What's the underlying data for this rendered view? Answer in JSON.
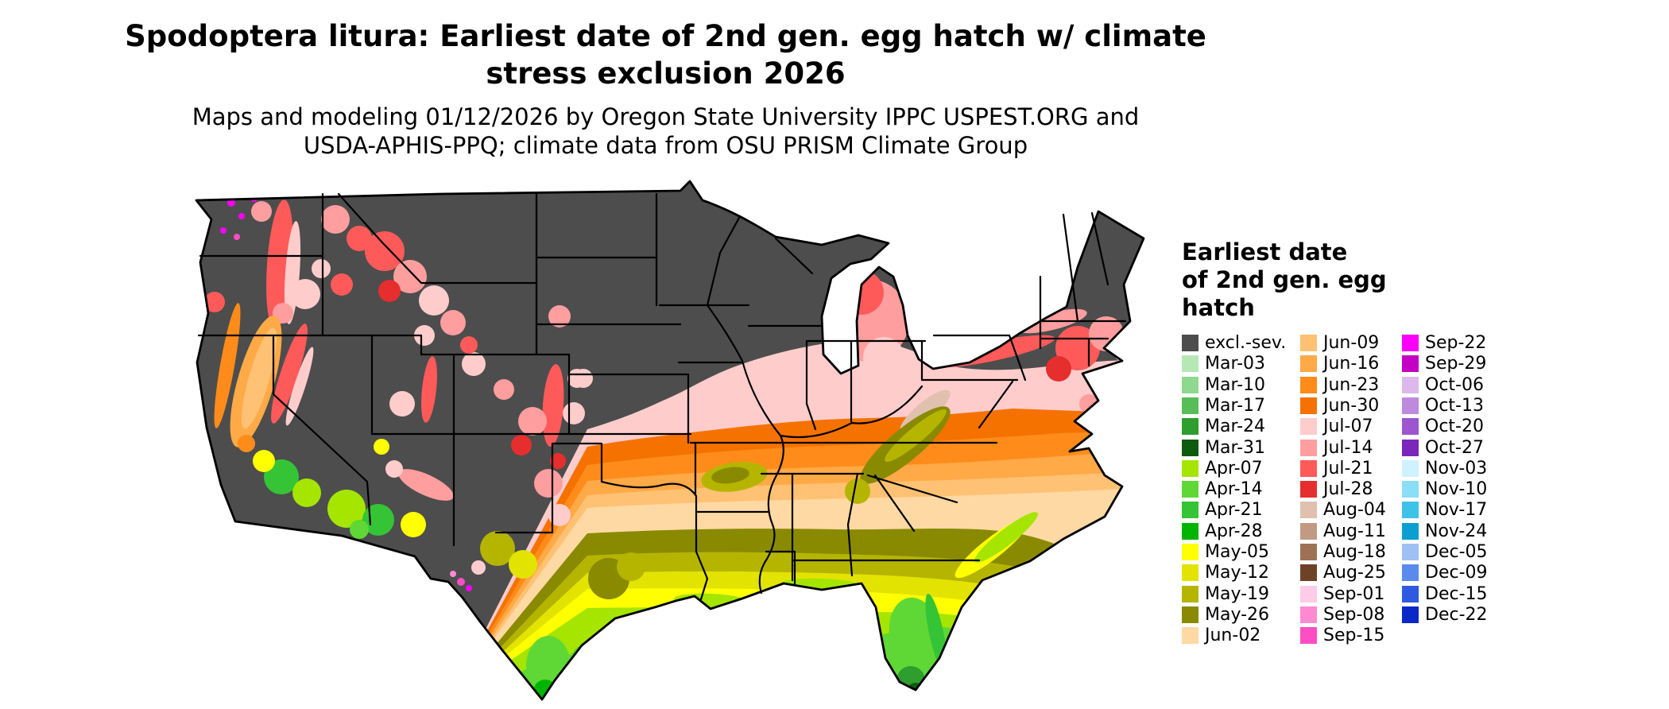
{
  "header": {
    "title_line1": "Spodoptera litura: Earliest date of 2nd gen. egg hatch w/ climate",
    "title_line2": "stress exclusion 2026",
    "subtitle_line1": "Maps and modeling 01/12/2026 by Oregon State University IPPC USPEST.ORG and",
    "subtitle_line2": "USDA-APHIS-PPQ; climate data from OSU PRISM Climate Group"
  },
  "legend": {
    "title": "Earliest date of 2nd gen. egg hatch",
    "title_lines": [
      "Earliest date",
      "of 2nd gen. egg",
      "hatch"
    ],
    "columns": [
      {
        "entries": [
          {
            "label": "excl.-sev.",
            "color": "#4D4D4D"
          },
          {
            "label": "Mar-03",
            "color": "#B5E8B5"
          },
          {
            "label": "Mar-10",
            "color": "#8FD98F"
          },
          {
            "label": "Mar-17",
            "color": "#57BE57"
          },
          {
            "label": "Mar-24",
            "color": "#2E9E2E"
          },
          {
            "label": "Mar-31",
            "color": "#0E5A0E"
          },
          {
            "label": "Apr-07",
            "color": "#A5E500"
          },
          {
            "label": "Apr-14",
            "color": "#5FD835"
          },
          {
            "label": "Apr-21",
            "color": "#35C435"
          },
          {
            "label": "Apr-28",
            "color": "#00B400"
          },
          {
            "label": "May-05",
            "color": "#FFFF00"
          },
          {
            "label": "May-12",
            "color": "#E3E300"
          },
          {
            "label": "May-19",
            "color": "#B5B500"
          },
          {
            "label": "May-26",
            "color": "#8A8A00"
          },
          {
            "label": "Jun-02",
            "color": "#FFD9A3"
          }
        ]
      },
      {
        "entries": [
          {
            "label": "Jun-09",
            "color": "#FFC173"
          },
          {
            "label": "Jun-16",
            "color": "#FFA947"
          },
          {
            "label": "Jun-23",
            "color": "#FF8C1A"
          },
          {
            "label": "Jun-30",
            "color": "#F57200"
          },
          {
            "label": "Jul-07",
            "color": "#FFCCCC"
          },
          {
            "label": "Jul-14",
            "color": "#FF9E9E"
          },
          {
            "label": "Jul-21",
            "color": "#FF5A5A"
          },
          {
            "label": "Jul-28",
            "color": "#E62E2E"
          },
          {
            "label": "Aug-04",
            "color": "#E0C0AE"
          },
          {
            "label": "Aug-11",
            "color": "#C29A84"
          },
          {
            "label": "Aug-18",
            "color": "#9E7257"
          },
          {
            "label": "Aug-25",
            "color": "#6E4226"
          },
          {
            "label": "Sep-01",
            "color": "#FFCCE8"
          },
          {
            "label": "Sep-08",
            "color": "#FF8AD2"
          },
          {
            "label": "Sep-15",
            "color": "#FF4DC4"
          }
        ]
      },
      {
        "entries": [
          {
            "label": "Sep-22",
            "color": "#FA00FA"
          },
          {
            "label": "Sep-29",
            "color": "#C400C4"
          },
          {
            "label": "Oct-06",
            "color": "#DDB8EC"
          },
          {
            "label": "Oct-13",
            "color": "#BE8ADF"
          },
          {
            "label": "Oct-20",
            "color": "#9C57CE"
          },
          {
            "label": "Oct-27",
            "color": "#7A26B8"
          },
          {
            "label": "Nov-03",
            "color": "#CFF2FF"
          },
          {
            "label": "Nov-10",
            "color": "#8ADEF5"
          },
          {
            "label": "Nov-17",
            "color": "#3FC2E8"
          },
          {
            "label": "Nov-24",
            "color": "#0A9FD0"
          },
          {
            "label": "Dec-05",
            "color": "#9EC0F5"
          },
          {
            "label": "Dec-09",
            "color": "#5A8AEE"
          },
          {
            "label": "Dec-15",
            "color": "#2E5ADF"
          },
          {
            "label": "Dec-22",
            "color": "#0A28C8"
          }
        ]
      }
    ]
  },
  "map": {
    "border_color": "#000000"
  }
}
